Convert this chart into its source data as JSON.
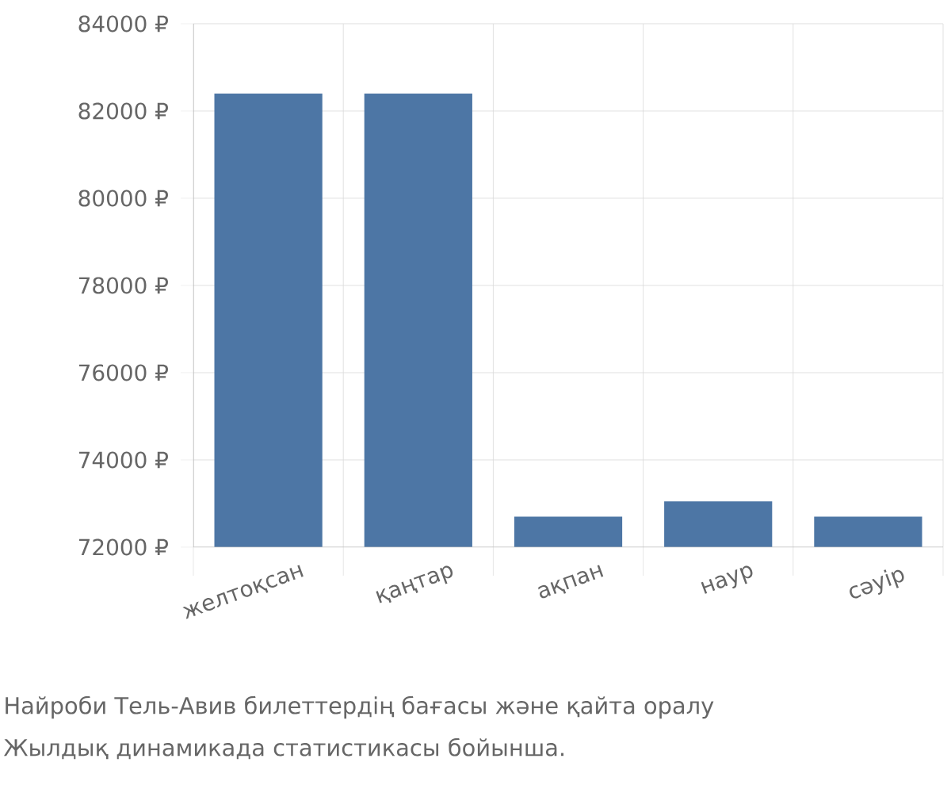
{
  "chart_data": {
    "type": "bar",
    "categories": [
      "желтоқсан",
      "қаңтар",
      "ақпан",
      "наур",
      "сәуір"
    ],
    "values": [
      82400,
      82400,
      72700,
      73050,
      72700
    ],
    "color": "#4d76a5",
    "ylim": [
      72000,
      84000
    ],
    "yticks": [
      {
        "value": 72000,
        "label": "72000 ₽"
      },
      {
        "value": 74000,
        "label": "74000 ₽"
      },
      {
        "value": 76000,
        "label": "76000 ₽"
      },
      {
        "value": 78000,
        "label": "78000 ₽"
      },
      {
        "value": 80000,
        "label": "80000 ₽"
      },
      {
        "value": 82000,
        "label": "82000 ₽"
      },
      {
        "value": 84000,
        "label": "84000 ₽"
      }
    ],
    "grid": true,
    "annotations": [
      "Найроби Тель-Авив билеттердің бағасы және қайта оралу",
      "Жылдық динамикада статистикасы бойынша."
    ]
  }
}
